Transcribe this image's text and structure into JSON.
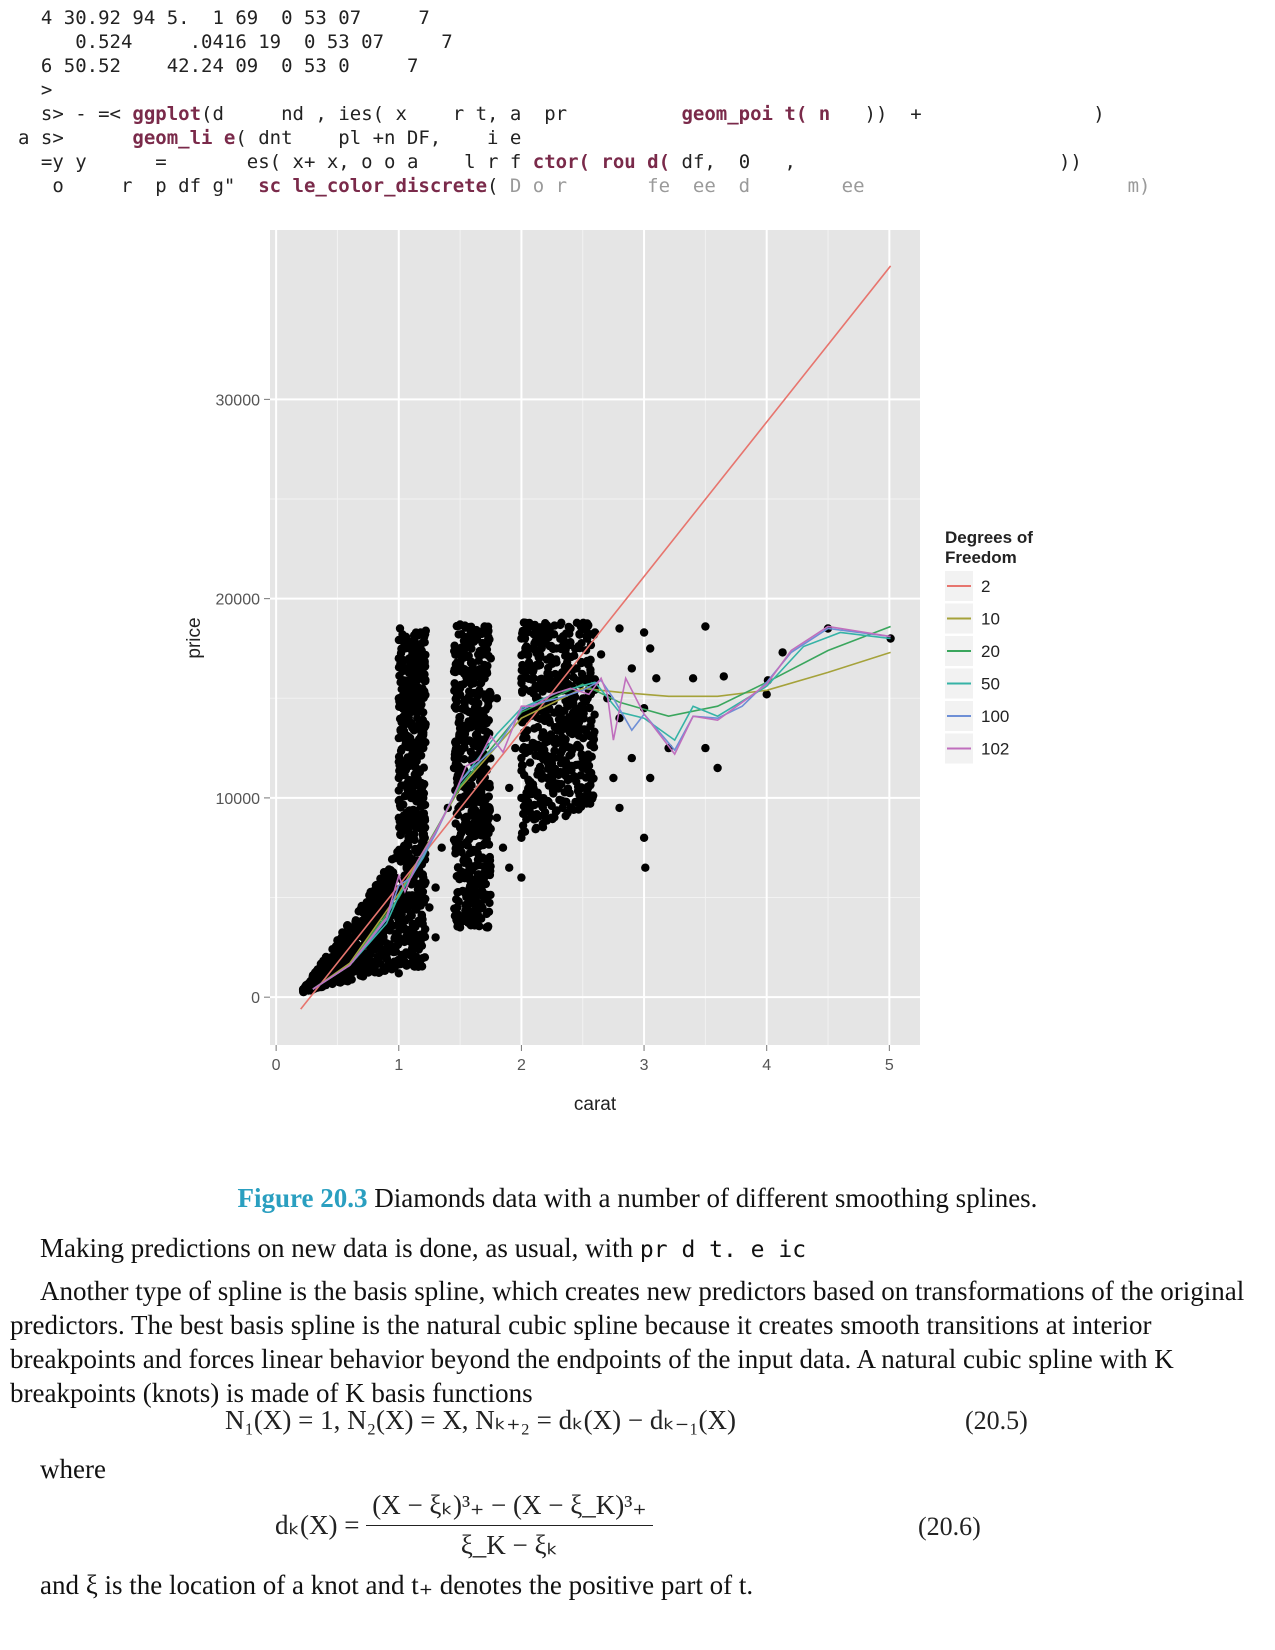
{
  "code_lines": [
    {
      "indent": "  ",
      "parts": [
        {
          "t": "4 30.92 94 5.  1 69  0 53 07     7",
          "c": ""
        }
      ]
    },
    {
      "indent": "     ",
      "parts": [
        {
          "t": "0.524     .0416 19  0 53 07     7",
          "c": ""
        }
      ]
    },
    {
      "indent": "  ",
      "parts": [
        {
          "t": "6 50.52    42.24 09  0 53 0     7",
          "c": ""
        }
      ]
    },
    {
      "indent": "  ",
      "parts": [
        {
          "t": ">",
          "c": ""
        }
      ]
    },
    {
      "indent": "  ",
      "parts": [
        {
          "t": "s> - =< ",
          "c": ""
        },
        {
          "t": "ggplot",
          "c": "kw"
        },
        {
          "t": "(d     nd , ies( x    r t, a  pr          ",
          "c": ""
        },
        {
          "t": "geom_poi t( n",
          "c": "kw"
        },
        {
          "t": "   ))  +               )",
          "c": ""
        }
      ]
    },
    {
      "indent": "",
      "parts": [
        {
          "t": "a s>      ",
          "c": ""
        },
        {
          "t": "geom_li e",
          "c": "kw"
        },
        {
          "t": "( dnt    pl +n DF,    i e",
          "c": ""
        }
      ]
    },
    {
      "indent": "  ",
      "parts": [
        {
          "t": "=y y      =       es( x+ x, o o a    l r f ",
          "c": ""
        },
        {
          "t": "ctor( rou d(",
          "c": "kw"
        },
        {
          "t": " df,  0   ,                       ))",
          "c": ""
        }
      ]
    },
    {
      "indent": "   ",
      "parts": [
        {
          "t": "o     r  p df g\"  ",
          "c": ""
        },
        {
          "t": "sc le_color_discrete",
          "c": "kw"
        },
        {
          "t": "(",
          "c": ""
        },
        {
          "t": " D o r       fe  ee  d        ee                       m)",
          "c": "cm"
        }
      ]
    }
  ],
  "chart_data": {
    "type": "scatter",
    "xlabel": "carat",
    "ylabel": "price",
    "x_ticks": [
      0,
      1,
      2,
      3,
      4,
      5
    ],
    "y_ticks": [
      0,
      10000,
      20000,
      30000
    ],
    "xlim": [
      -0.05,
      5.25
    ],
    "ylim": [
      -2400,
      38500
    ],
    "grid": true,
    "legend_position": "right",
    "legend_title": "Degrees of Freedom",
    "points": [
      [
        0.23,
        326
      ],
      [
        0.25,
        420
      ],
      [
        0.28,
        480
      ],
      [
        0.3,
        520
      ],
      [
        0.31,
        600
      ],
      [
        0.33,
        650
      ],
      [
        0.35,
        700
      ],
      [
        0.38,
        800
      ],
      [
        0.4,
        900
      ],
      [
        0.42,
        1000
      ],
      [
        0.45,
        1100
      ],
      [
        0.5,
        1300
      ],
      [
        0.52,
        1500
      ],
      [
        0.55,
        1700
      ],
      [
        0.6,
        1900
      ],
      [
        0.63,
        2100
      ],
      [
        0.7,
        2300
      ],
      [
        0.72,
        2600
      ],
      [
        0.75,
        2900
      ],
      [
        0.8,
        3200
      ],
      [
        0.3,
        1100
      ],
      [
        0.35,
        1400
      ],
      [
        0.4,
        1700
      ],
      [
        0.45,
        2000
      ],
      [
        0.5,
        2300
      ],
      [
        0.55,
        2600
      ],
      [
        0.6,
        2900
      ],
      [
        0.65,
        3200
      ],
      [
        0.7,
        3600
      ],
      [
        0.75,
        4000
      ],
      [
        0.8,
        4400
      ],
      [
        0.85,
        4800
      ],
      [
        0.9,
        5200
      ],
      [
        0.95,
        5600
      ],
      [
        1.0,
        1200
      ],
      [
        1.0,
        3000
      ],
      [
        1.0,
        5000
      ],
      [
        1.0,
        7000
      ],
      [
        1.0,
        9000
      ],
      [
        1.0,
        11000
      ],
      [
        1.0,
        13000
      ],
      [
        1.0,
        15000
      ],
      [
        1.0,
        17000
      ],
      [
        1.01,
        18500
      ],
      [
        1.03,
        18200
      ],
      [
        1.05,
        17500
      ],
      [
        1.1,
        16800
      ],
      [
        1.12,
        15500
      ],
      [
        1.15,
        14000
      ],
      [
        1.2,
        12500
      ],
      [
        1.2,
        10000
      ],
      [
        1.2,
        8000
      ],
      [
        1.2,
        6000
      ],
      [
        1.25,
        4500
      ],
      [
        1.3,
        3000
      ],
      [
        1.3,
        5500
      ],
      [
        1.35,
        7500
      ],
      [
        1.4,
        9500
      ],
      [
        1.45,
        11500
      ],
      [
        1.5,
        13500
      ],
      [
        1.5,
        15500
      ],
      [
        1.5,
        17500
      ],
      [
        1.5,
        18700
      ],
      [
        1.5,
        3500
      ],
      [
        1.5,
        6000
      ],
      [
        1.5,
        8500
      ],
      [
        1.55,
        10500
      ],
      [
        1.6,
        12000
      ],
      [
        1.65,
        14000
      ],
      [
        1.7,
        16000
      ],
      [
        1.7,
        18600
      ],
      [
        1.75,
        17000
      ],
      [
        1.8,
        15000
      ],
      [
        1.8,
        9000
      ],
      [
        1.85,
        7500
      ],
      [
        1.9,
        6500
      ],
      [
        1.9,
        10500
      ],
      [
        1.95,
        12500
      ],
      [
        2.0,
        6000
      ],
      [
        2.0,
        8000
      ],
      [
        2.0,
        10000
      ],
      [
        2.0,
        12000
      ],
      [
        2.0,
        14000
      ],
      [
        2.0,
        16000
      ],
      [
        2.0,
        18000
      ],
      [
        2.02,
        18800
      ],
      [
        2.05,
        17500
      ],
      [
        2.1,
        16000
      ],
      [
        2.15,
        14500
      ],
      [
        2.2,
        13000
      ],
      [
        2.2,
        9000
      ],
      [
        2.25,
        11000
      ],
      [
        2.3,
        15500
      ],
      [
        2.35,
        17800
      ],
      [
        2.4,
        18500
      ],
      [
        2.45,
        16500
      ],
      [
        2.5,
        14500
      ],
      [
        2.5,
        12000
      ],
      [
        2.5,
        18700
      ],
      [
        2.55,
        16000
      ],
      [
        2.6,
        18300
      ],
      [
        2.65,
        17200
      ],
      [
        2.7,
        15000
      ],
      [
        2.75,
        11000
      ],
      [
        2.8,
        9500
      ],
      [
        2.8,
        14000
      ],
      [
        2.8,
        18500
      ],
      [
        2.9,
        12000
      ],
      [
        2.9,
        16500
      ],
      [
        3.0,
        8000
      ],
      [
        3.0,
        14500
      ],
      [
        3.0,
        18300
      ],
      [
        3.01,
        6500
      ],
      [
        3.05,
        17500
      ],
      [
        3.05,
        11000
      ],
      [
        3.1,
        16000
      ],
      [
        3.2,
        12500
      ],
      [
        3.4,
        16000
      ],
      [
        3.5,
        12500
      ],
      [
        3.5,
        18600
      ],
      [
        3.6,
        11500
      ],
      [
        3.65,
        16100
      ],
      [
        4.0,
        15200
      ],
      [
        4.01,
        15900
      ],
      [
        4.13,
        17300
      ],
      [
        4.5,
        18500
      ],
      [
        5.01,
        18000
      ]
    ],
    "series": [
      {
        "name": "2",
        "color": "#e7756e",
        "x": [
          0.2,
          5.01
        ],
        "y": [
          -600,
          36700
        ]
      },
      {
        "name": "10",
        "color": "#a5a23a",
        "x": [
          0.3,
          0.6,
          1.0,
          1.5,
          2.0,
          2.5,
          2.8,
          3.2,
          3.6,
          4.0,
          4.5,
          5.01
        ],
        "y": [
          400,
          1700,
          5200,
          10500,
          14000,
          15500,
          15300,
          15100,
          15100,
          15400,
          16300,
          17300
        ]
      },
      {
        "name": "20",
        "color": "#3aa65d",
        "x": [
          0.3,
          0.6,
          1.0,
          1.5,
          2.0,
          2.5,
          2.8,
          3.2,
          3.6,
          4.0,
          4.5,
          5.01
        ],
        "y": [
          400,
          1600,
          5000,
          10600,
          14300,
          15700,
          14800,
          14100,
          14600,
          15800,
          17400,
          18600
        ]
      },
      {
        "name": "50",
        "color": "#35b3a6",
        "x": [
          0.3,
          0.6,
          0.9,
          1.0,
          1.2,
          1.5,
          1.8,
          2.0,
          2.3,
          2.6,
          2.8,
          3.0,
          3.25,
          3.4,
          3.6,
          4.0,
          4.3,
          4.6,
          5.01
        ],
        "y": [
          400,
          1600,
          3700,
          5100,
          7000,
          10800,
          13200,
          14500,
          15300,
          15800,
          14300,
          14000,
          12900,
          14600,
          14100,
          15600,
          17600,
          18300,
          18000
        ]
      },
      {
        "name": "100",
        "color": "#6e8fd6",
        "x": [
          0.3,
          0.6,
          0.9,
          1.0,
          1.1,
          1.3,
          1.5,
          1.6,
          1.8,
          2.0,
          2.1,
          2.3,
          2.5,
          2.65,
          2.75,
          2.9,
          3.0,
          3.25,
          3.4,
          3.6,
          3.8,
          4.0,
          4.2,
          4.5,
          5.01
        ],
        "y": [
          400,
          1600,
          3900,
          5600,
          6000,
          8200,
          10800,
          11500,
          12600,
          14400,
          14700,
          15000,
          15400,
          15900,
          15000,
          13400,
          14200,
          12400,
          14100,
          14000,
          14600,
          15800,
          17300,
          18500,
          18100
        ]
      },
      {
        "name": "102",
        "color": "#c06fbd",
        "x": [
          0.3,
          0.6,
          0.9,
          1.0,
          1.05,
          1.15,
          1.3,
          1.45,
          1.55,
          1.65,
          1.75,
          1.85,
          2.0,
          2.1,
          2.25,
          2.4,
          2.55,
          2.65,
          2.7,
          2.75,
          2.85,
          3.0,
          3.25,
          3.4,
          3.6,
          3.8,
          4.0,
          4.2,
          4.5,
          5.01
        ],
        "y": [
          400,
          1600,
          4000,
          6100,
          5300,
          6800,
          8300,
          10100,
          11600,
          11900,
          13100,
          12300,
          14600,
          14600,
          15200,
          15500,
          15200,
          16000,
          15200,
          12900,
          16000,
          14200,
          12200,
          14100,
          13900,
          14800,
          15700,
          17400,
          18600,
          18100
        ]
      }
    ]
  },
  "figure": {
    "number": "Figure 20.3",
    "caption": " Diamonds data with a number of different smoothing splines."
  },
  "para1": {
    "text": "Making predictions on new data is done, as usual, with ",
    "code": "pr d   t.     e ic"
  },
  "para2": "Another type of spline is the basis spline, which creates new predictors based on transformations of the original predictors. The best basis spline is the natural cubic spline because it creates smooth transitions at interior breakpoints and forces linear behavior beyond the endpoints of the input data. A natural cubic spline with K breakpoints (knots) is made of K basis functions",
  "eq1": {
    "text": "N₁(X) = 1, N₂(X) = X, Nₖ₊₂ = dₖ(X) − dₖ₋₁(X)",
    "number": "(20.5)"
  },
  "where": "where",
  "eq2": {
    "lhs": "dₖ(X) =",
    "numerator": "(X − ξₖ)³₊ − (X − ξ_K)³₊",
    "denominator": "ξ_K − ξₖ",
    "number": "(20.6)"
  },
  "para3": "and ξ is the location of a knot and t₊ denotes the positive part of t."
}
